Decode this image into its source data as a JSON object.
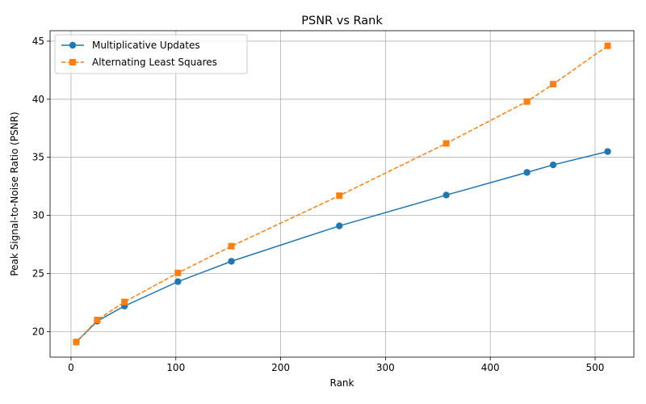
{
  "chart_data": {
    "type": "line",
    "title": "PSNR vs Rank",
    "xlabel": "Rank",
    "ylabel": "Peak Signal-to-Noise Ratio (PSNR)",
    "xlim": [
      -20,
      537
    ],
    "ylim": [
      17.8,
      45.9
    ],
    "xticks": [
      0,
      100,
      200,
      300,
      400,
      500
    ],
    "yticks": [
      20,
      25,
      30,
      35,
      40,
      45
    ],
    "grid": true,
    "legend_position": "top-left",
    "series": [
      {
        "name": "Multiplicative Updates",
        "color": "#1f77b4",
        "marker": "circle",
        "line_style": "solid",
        "x": [
          5,
          25,
          51,
          102,
          153,
          256,
          358,
          435,
          460,
          512
        ],
        "y": [
          19.1,
          20.9,
          22.2,
          24.3,
          26.05,
          29.1,
          31.75,
          33.7,
          34.35,
          35.5
        ]
      },
      {
        "name": "Alternating Least Squares",
        "color": "#ff7f0e",
        "marker": "square",
        "line_style": "dashed",
        "x": [
          5,
          25,
          51,
          102,
          153,
          256,
          358,
          435,
          460,
          512
        ],
        "y": [
          19.1,
          21.0,
          22.55,
          25.05,
          27.35,
          31.7,
          36.2,
          39.8,
          41.3,
          44.6
        ]
      }
    ]
  }
}
